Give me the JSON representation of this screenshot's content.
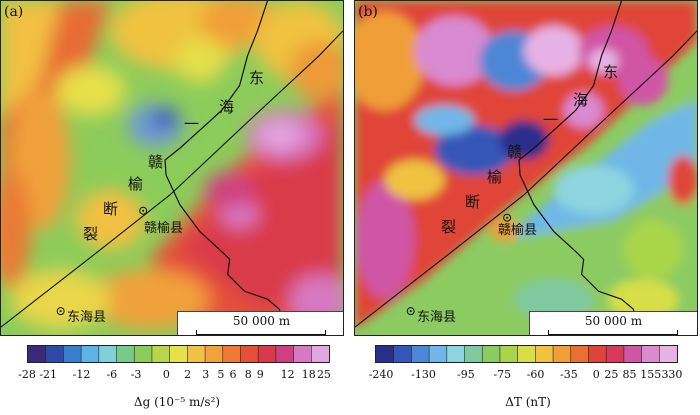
{
  "panels": [
    {
      "tag": "(a)",
      "fault_chars": [
        "东",
        "海",
        "一",
        "赣",
        "榆",
        "断",
        "裂"
      ],
      "county_gy": "赣榆县",
      "county_dh": "东海县",
      "scale_label": "50 000 m",
      "colorbar_ticks": [
        "-28",
        "-21",
        "-12",
        "-6",
        "-3",
        "0",
        "2",
        "3",
        "5",
        "6",
        "8",
        "9",
        "12",
        "18",
        "25"
      ],
      "caption": "Δg (10⁻⁵ m/s²)"
    },
    {
      "tag": "(b)",
      "fault_chars": [
        "东",
        "海",
        "一",
        "赣",
        "榆",
        "断",
        "裂"
      ],
      "county_gy": "赣榆县",
      "county_dh": "东海县",
      "scale_label": "50 000 m",
      "colorbar_ticks": [
        "-240",
        "-130",
        "-95",
        "-75",
        "-60",
        "-35",
        "0",
        "25",
        "85",
        "155",
        "330"
      ],
      "caption": "ΔT (nT)"
    }
  ],
  "colors": {
    "colorbar_a": [
      "#3b2a7a",
      "#2e4aa8",
      "#3a7ed1",
      "#5cb3e6",
      "#7fd0d8",
      "#78c98a",
      "#8ccc5a",
      "#b8d64a",
      "#e6e04a",
      "#f2c043",
      "#f2a23c",
      "#ee7a36",
      "#e5503a",
      "#d93a4a",
      "#cf3f82",
      "#d778c2",
      "#e2a6e0"
    ],
    "colorbar_b": [
      "#2b2f8c",
      "#3456b8",
      "#4d86d6",
      "#6fb7e8",
      "#8dd4e0",
      "#80c9a0",
      "#8ccb62",
      "#a9d54a",
      "#d6df47",
      "#f0c240",
      "#f09f38",
      "#ea6f32",
      "#e04438",
      "#d83a5a",
      "#d055a4",
      "#d98ad0",
      "#e6b2e6"
    ]
  }
}
